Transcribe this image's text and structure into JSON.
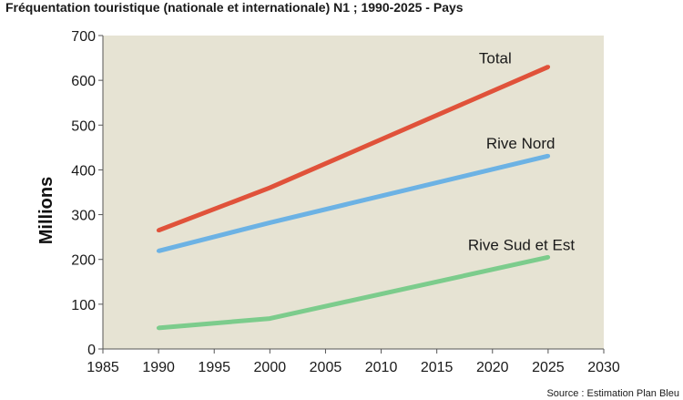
{
  "title": "Fréquentation touristique (nationale et internationale) N1 ; 1990-2025 - Pays",
  "source": "Source : Estimation Plan Bleu",
  "chart_data": {
    "type": "line",
    "title": "Fréquentation touristique (nationale et internationale) N1 ; 1990-2025 - Pays",
    "xlabel": "",
    "ylabel": "Millions",
    "xlim": [
      1985,
      2030
    ],
    "ylim": [
      0,
      700
    ],
    "xticks": [
      1985,
      1990,
      1995,
      2000,
      2005,
      2010,
      2015,
      2020,
      2025,
      2030
    ],
    "yticks": [
      0,
      100,
      200,
      300,
      400,
      500,
      600,
      700
    ],
    "grid": false,
    "plot_background": "#e6e3d3",
    "series": [
      {
        "name": "Total",
        "color": "#e0523a",
        "x": [
          1990,
          2000,
          2025
        ],
        "values": [
          265,
          360,
          630
        ]
      },
      {
        "name": "Rive Nord",
        "color": "#6cb2e4",
        "x": [
          1990,
          2000,
          2025
        ],
        "values": [
          219,
          282,
          431
        ]
      },
      {
        "name": "Rive Sud et Est",
        "color": "#7ccc8c",
        "x": [
          1990,
          2000,
          2025
        ],
        "values": [
          47,
          68,
          205
        ]
      }
    ]
  }
}
